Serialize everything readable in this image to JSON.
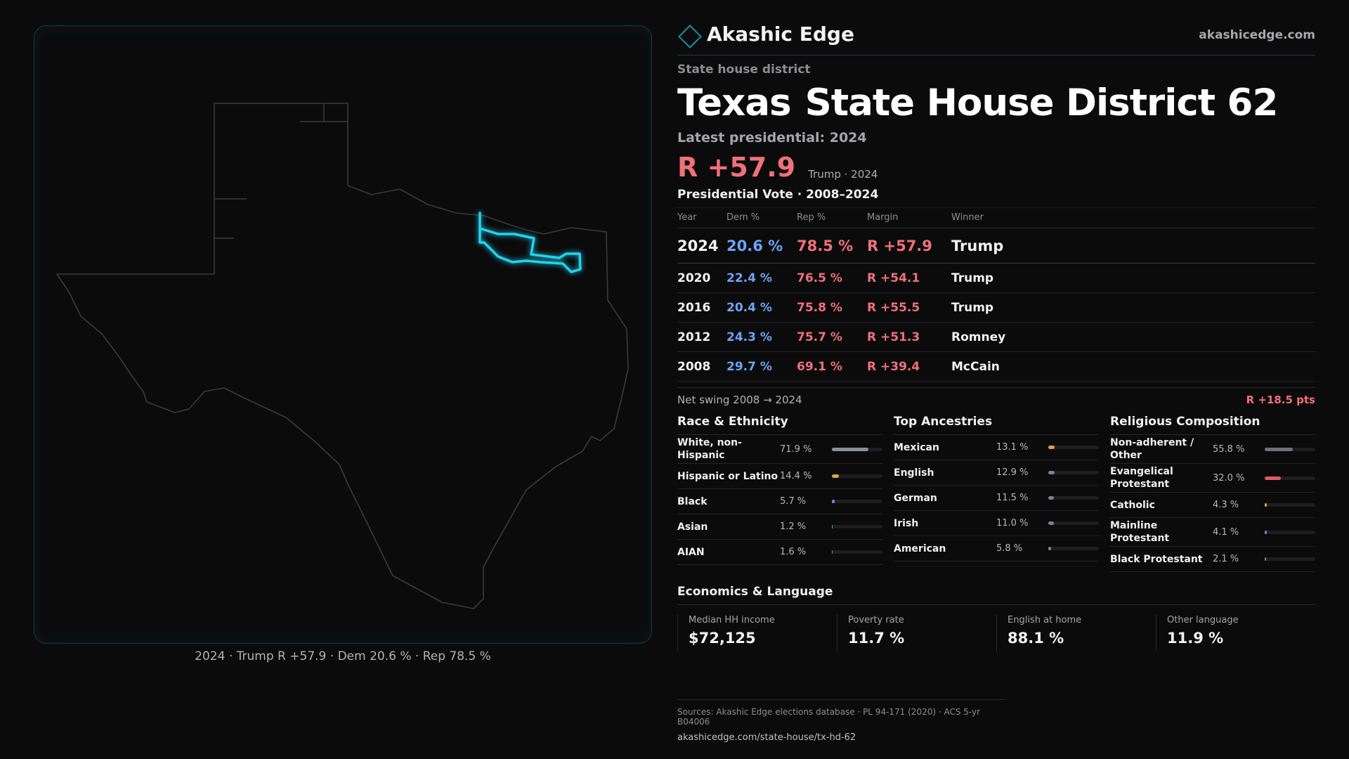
{
  "brand": {
    "name": "Akashic Edge",
    "site": "akashicedge.com"
  },
  "district": {
    "kicker": "State house district",
    "state": "Texas",
    "name": "State House District 62",
    "latest_label": "Latest presidential: 2024",
    "headline_margin": "R +57.9",
    "headline_sub": "Trump · 2024"
  },
  "map": {
    "caption": "2024 · Trump R +57.9 · Dem 20.6 % · Rep 78.5 %",
    "outline_color": "#3a3a3e",
    "highlight_color": "#22d3ee"
  },
  "votes": {
    "title": "Presidential Vote · 2008–2024",
    "headers": {
      "year": "Year",
      "dem": "Dem %",
      "rep": "Rep %",
      "margin": "Margin",
      "winner": "Winner"
    },
    "rows": [
      {
        "year": "2024",
        "dem": "20.6 %",
        "rep": "78.5 %",
        "margin": "R +57.9",
        "winner": "Trump"
      },
      {
        "year": "2020",
        "dem": "22.4 %",
        "rep": "76.5 %",
        "margin": "R +54.1",
        "winner": "Trump"
      },
      {
        "year": "2016",
        "dem": "20.4 %",
        "rep": "75.8 %",
        "margin": "R +55.5",
        "winner": "Trump"
      },
      {
        "year": "2012",
        "dem": "24.3 %",
        "rep": "75.7 %",
        "margin": "R +51.3",
        "winner": "Romney"
      },
      {
        "year": "2008",
        "dem": "29.7 %",
        "rep": "69.1 %",
        "margin": "R +39.4",
        "winner": "McCain"
      }
    ],
    "swing_label": "Net swing 2008 → 2024",
    "swing_value": "R +18.5 pts"
  },
  "race": {
    "title": "Race & Ethnicity",
    "items": [
      {
        "label": "White, non-Hispanic",
        "value": "71.9 %",
        "pct": 71.9,
        "color": "#8a8f9c"
      },
      {
        "label": "Hispanic or Latino",
        "value": "14.4 %",
        "pct": 14.4,
        "color": "#e0a43a"
      },
      {
        "label": "Black",
        "value": "5.7 %",
        "pct": 5.7,
        "color": "#8b7cf6"
      },
      {
        "label": "Asian",
        "value": "1.2 %",
        "pct": 1.2,
        "color": "#3fb68b"
      },
      {
        "label": "AIAN",
        "value": "1.6 %",
        "pct": 1.6,
        "color": "#c2703a"
      }
    ]
  },
  "ancestry": {
    "title": "Top Ancestries",
    "items": [
      {
        "label": "Mexican",
        "value": "13.1 %",
        "pct": 13.1,
        "color": "#e0a43a"
      },
      {
        "label": "English",
        "value": "12.9 %",
        "pct": 12.9,
        "color": "#7d8290"
      },
      {
        "label": "German",
        "value": "11.5 %",
        "pct": 11.5,
        "color": "#7d8290"
      },
      {
        "label": "Irish",
        "value": "11.0 %",
        "pct": 11.0,
        "color": "#7d8290"
      },
      {
        "label": "American",
        "value": "5.8 %",
        "pct": 5.8,
        "color": "#7d8290"
      }
    ]
  },
  "religion": {
    "title": "Religious Composition",
    "items": [
      {
        "label": "Non-adherent / Other",
        "value": "55.8 %",
        "pct": 55.8,
        "color": "#6b707c"
      },
      {
        "label": "Evangelical Protestant",
        "value": "32.0 %",
        "pct": 32.0,
        "color": "#e05a60"
      },
      {
        "label": "Catholic",
        "value": "4.3 %",
        "pct": 4.3,
        "color": "#e0a43a"
      },
      {
        "label": "Mainline Protestant",
        "value": "4.1 %",
        "pct": 4.1,
        "color": "#5b8ce0"
      },
      {
        "label": "Black Protestant",
        "value": "2.1 %",
        "pct": 2.1,
        "color": "#7d8290"
      }
    ]
  },
  "economics": {
    "title": "Economics & Language",
    "cards": [
      {
        "label": "Median HH income",
        "value": "$72,125"
      },
      {
        "label": "Poverty rate",
        "value": "11.7 %"
      },
      {
        "label": "English at home",
        "value": "88.1 %"
      },
      {
        "label": "Other language",
        "value": "11.9 %"
      }
    ]
  },
  "sources": {
    "line": "Sources: Akashic Edge elections database · PL 94-171 (2020) · ACS 5-yr B04006",
    "url": "akashicedge.com/state-house/tx-hd-62"
  }
}
